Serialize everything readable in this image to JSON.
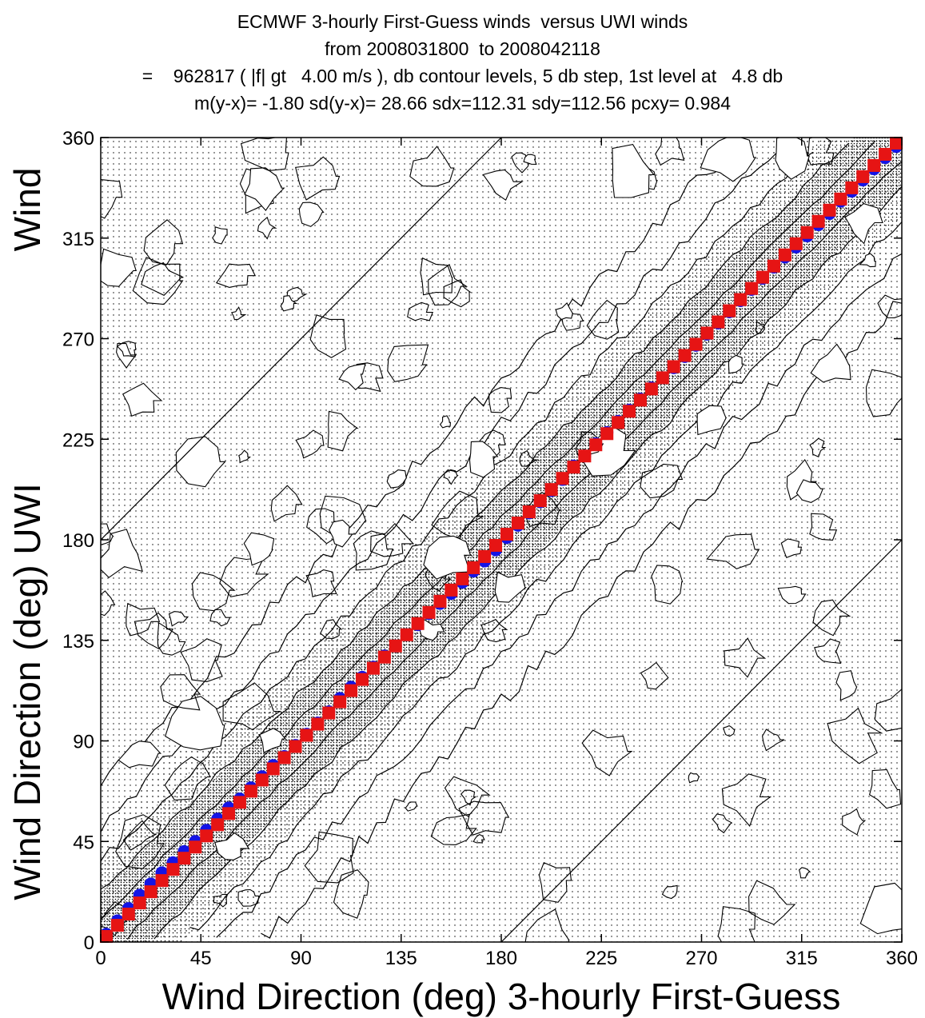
{
  "chart_data": {
    "type": "heatmap",
    "title": [
      "ECMWF 3-hourly First-Guess winds  versus UWI winds",
      "from 2008031800  to 2008042118",
      "=    962817 ( |f| gt   4.00 m/s ), db contour levels, 5 db step, 1st level at   4.8 db",
      "m(y-x)= -1.80 sd(y-x)= 28.66 sdx=112.31 sdy=112.56 pcxy= 0.984"
    ],
    "xlabel": "Wind Direction (deg) 3-hourly First-Guess",
    "ylabel": "Wind Direction (deg) UWI",
    "ylabel_top": "Wind",
    "xlim": [
      0,
      360
    ],
    "ylim": [
      0,
      360
    ],
    "xticks": [
      "0",
      "45",
      "90",
      "135",
      "180",
      "225",
      "270",
      "315",
      "360"
    ],
    "yticks": [
      "0",
      "45",
      "90",
      "135",
      "180",
      "225",
      "270",
      "315",
      "360"
    ],
    "reference_lines": [
      {
        "x": [
          0,
          180
        ],
        "y": [
          180,
          360
        ]
      },
      {
        "x": [
          180,
          360
        ],
        "y": [
          0,
          180
        ]
      }
    ],
    "series": [
      {
        "marker": "circle",
        "color": "#1414e6",
        "x": [
          2.5,
          7.5,
          12.5,
          17.5,
          22.5,
          27.5,
          32.5,
          37.5,
          42.5,
          47.5,
          52.5,
          57.5,
          62.5,
          67.5,
          72.5,
          77.5,
          82.5,
          87.5,
          92.5,
          97.5,
          102.5,
          107.5,
          112.5,
          117.5,
          122.5,
          127.5,
          132.5,
          137.5,
          142.5,
          147.5,
          152.5,
          157.5,
          162.5,
          167.5,
          172.5,
          177.5,
          182.5,
          187.5,
          192.5,
          197.5,
          202.5,
          207.5,
          212.5,
          217.5,
          222.5,
          227.5,
          232.5,
          237.5,
          242.5,
          247.5,
          252.5,
          257.5,
          262.5,
          267.5,
          272.5,
          277.5,
          282.5,
          287.5,
          292.5,
          297.5,
          302.5,
          307.5,
          312.5,
          317.5,
          322.5,
          327.5,
          332.5,
          337.5,
          342.5,
          347.5,
          352.5,
          357.5
        ],
        "y": [
          3.5,
          9.5,
          15,
          21,
          26,
          31,
          35.5,
          40.5,
          45,
          50,
          55,
          60,
          64,
          69,
          74,
          79,
          83,
          88,
          93,
          98,
          103,
          109,
          114,
          118.5,
          123,
          128,
          132.5,
          137.5,
          142,
          147,
          151.5,
          156,
          161,
          166,
          170.5,
          175.5,
          181,
          186.5,
          192,
          197,
          202,
          207,
          213,
          217.5,
          223,
          228,
          233,
          238,
          243,
          248,
          252.5,
          257,
          262,
          267,
          272,
          277,
          282,
          287,
          292,
          297,
          302,
          306.5,
          311,
          316,
          321,
          326,
          331.5,
          336,
          341,
          346,
          351,
          356
        ]
      },
      {
        "marker": "square",
        "color": "#e61414",
        "x": [
          2.5,
          7.5,
          12.5,
          17.5,
          22.5,
          27.5,
          32.5,
          37.5,
          42.5,
          47.5,
          52.5,
          57.5,
          62.5,
          67.5,
          72.5,
          77.5,
          82.5,
          87.5,
          92.5,
          97.5,
          102.5,
          107.5,
          112.5,
          117.5,
          122.5,
          127.5,
          132.5,
          137.5,
          142.5,
          147.5,
          152.5,
          157.5,
          162.5,
          167.5,
          172.5,
          177.5,
          182.5,
          187.5,
          192.5,
          197.5,
          202.5,
          207.5,
          212.5,
          217.5,
          222.5,
          227.5,
          232.5,
          237.5,
          242.5,
          247.5,
          252.5,
          257.5,
          262.5,
          267.5,
          272.5,
          277.5,
          282.5,
          287.5,
          292.5,
          297.5,
          302.5,
          307.5,
          312.5,
          317.5,
          322.5,
          327.5,
          332.5,
          337.5,
          342.5,
          347.5,
          352.5,
          357.5
        ],
        "y": [
          2.5,
          7.5,
          12.5,
          17.5,
          22.5,
          27.5,
          32.5,
          37.5,
          42.5,
          47.5,
          52.5,
          57.5,
          62.5,
          67.5,
          72.5,
          77.5,
          82.5,
          87.5,
          92.5,
          97.5,
          102.5,
          107.5,
          112.5,
          117.5,
          122.5,
          127.5,
          132.5,
          137.5,
          142.5,
          147.5,
          152.5,
          157.5,
          162.5,
          167.5,
          172.5,
          177.5,
          182.5,
          187.5,
          192.5,
          197.5,
          202.5,
          207.5,
          212.5,
          217.5,
          222.5,
          227.5,
          232.5,
          237.5,
          242.5,
          247.5,
          252.5,
          257.5,
          262.5,
          267.5,
          272.5,
          277.5,
          282.5,
          287.5,
          292.5,
          297.5,
          302.5,
          307.5,
          312.5,
          317.5,
          322.5,
          327.5,
          332.5,
          337.5,
          342.5,
          347.5,
          352.5,
          357.5
        ]
      }
    ],
    "contour_levels_db_offsets_from_diagonal": [
      10,
      22,
      36,
      52,
      72
    ],
    "colors": {
      "marker_blue": "#1414e6",
      "marker_red": "#e61414",
      "contour": "#000000"
    }
  }
}
